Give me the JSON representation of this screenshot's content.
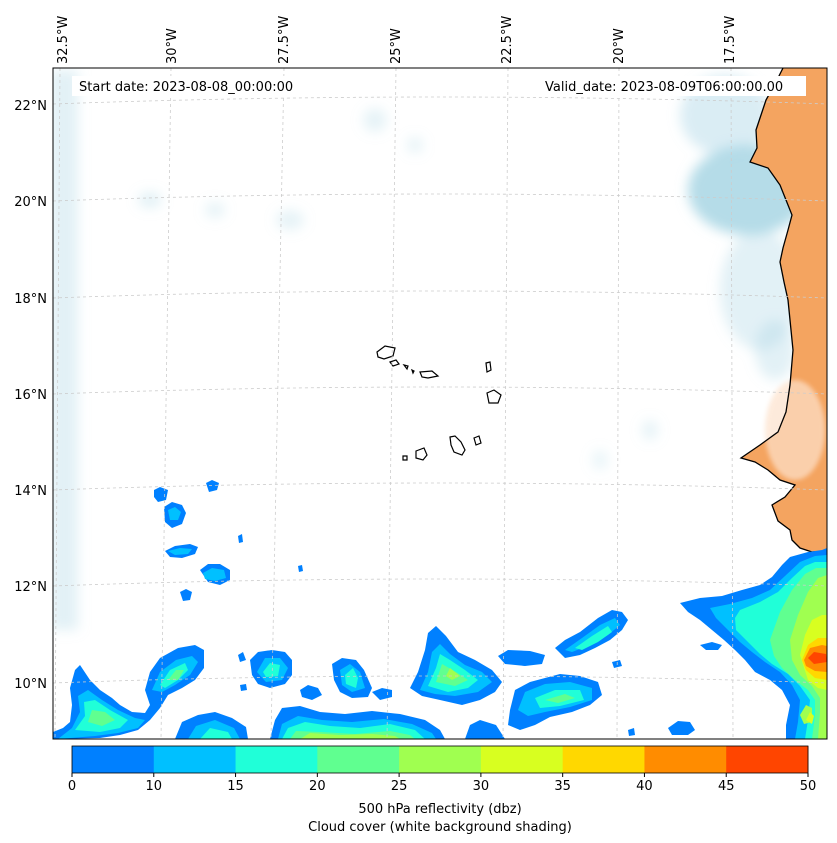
{
  "map": {
    "start_date": "Start date: 2023-08-08_00:00:00",
    "valid_date": "Valid_date: 2023-08-09T06:00:00.00",
    "lon_labels": [
      "32.5°W",
      "30°W",
      "27.5°W",
      "25°W",
      "22.5°W",
      "20°W",
      "17.5°W"
    ],
    "lat_labels": [
      "22°N",
      "20°N",
      "18°N",
      "16°N",
      "14°N",
      "12°N",
      "10°N"
    ],
    "colors": {
      "land": "#f4a460",
      "cloud": "#add8e6",
      "coast": "#000000",
      "grid": "#cccccc"
    }
  },
  "colorbar": {
    "label_line1": "500 hPa reflectivity (dbz)",
    "label_line2": "Cloud cover (white background shading)",
    "ticks": [
      "0",
      "10",
      "15",
      "20",
      "25",
      "30",
      "35",
      "40",
      "45",
      "50"
    ],
    "colors": [
      "#0080ff",
      "#00c0ff",
      "#20ffd8",
      "#60ff90",
      "#a0ff50",
      "#d8ff20",
      "#ffd800",
      "#ff8c00",
      "#ff4500"
    ]
  }
}
